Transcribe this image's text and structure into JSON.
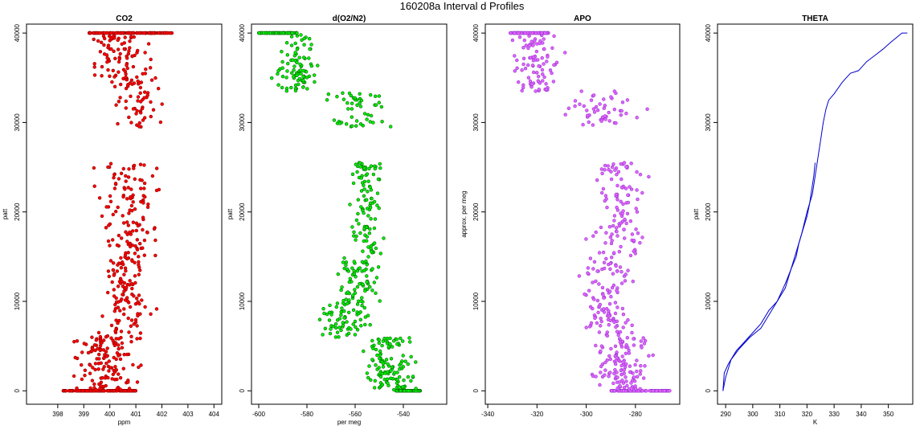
{
  "figure": {
    "title": "160208a   Interval d Profiles"
  },
  "chart_data": [
    {
      "type": "scatter",
      "title": "CO2",
      "xlabel": "ppm",
      "ylabel": "patt",
      "xlim": [
        396.8,
        404.3
      ],
      "ylim": [
        -1500,
        41000
      ],
      "xticks": [
        398,
        399,
        400,
        401,
        402,
        403,
        404
      ],
      "yticks": [
        0,
        10000,
        20000,
        30000,
        40000
      ],
      "colors": {
        "fill": "#ff0000",
        "edge": "#8b0000"
      },
      "segments": [
        {
          "ylo": 0,
          "yhi": 10,
          "center": 399.6,
          "spread": 1.4,
          "count": 150,
          "dist": "uniform"
        },
        {
          "ylo": 100,
          "yhi": 6000,
          "center": 399.9,
          "spread": 0.55,
          "count": 130
        },
        {
          "ylo": 6000,
          "yhi": 15000,
          "center": 400.6,
          "spread": 0.45,
          "count": 110
        },
        {
          "ylo": 15000,
          "yhi": 25500,
          "center": 400.8,
          "spread": 0.55,
          "count": 120
        },
        {
          "ylo": 29500,
          "yhi": 35000,
          "center": 401.0,
          "spread": 0.45,
          "count": 60
        },
        {
          "ylo": 35000,
          "yhi": 39800,
          "center": 400.2,
          "spread": 0.55,
          "count": 80
        },
        {
          "ylo": 40000,
          "yhi": 40010,
          "center": 400.8,
          "spread": 1.6,
          "count": 120,
          "dist": "uniform"
        }
      ]
    },
    {
      "type": "scatter",
      "title": "d(O2/N2)",
      "xlabel": "per meg",
      "ylabel": "patt",
      "xlim": [
        -603,
        -522
      ],
      "ylim": [
        -1500,
        41000
      ],
      "xticks": [
        -600,
        -580,
        -560,
        -540
      ],
      "yticks": [
        0,
        10000,
        20000,
        30000,
        40000
      ],
      "colors": {
        "fill": "#00ee00",
        "edge": "#006400"
      },
      "segments": [
        {
          "ylo": 0,
          "yhi": 10,
          "center": -538,
          "spread": 5,
          "count": 110,
          "dist": "uniform"
        },
        {
          "ylo": 100,
          "yhi": 6000,
          "center": -546,
          "spread": 4.5,
          "count": 120
        },
        {
          "ylo": 6000,
          "yhi": 10000,
          "center": -564,
          "spread": 4.5,
          "count": 70
        },
        {
          "ylo": 10000,
          "yhi": 15000,
          "center": -558,
          "spread": 4.5,
          "count": 70
        },
        {
          "ylo": 15000,
          "yhi": 25500,
          "center": -555,
          "spread": 3.5,
          "count": 100
        },
        {
          "ylo": 29500,
          "yhi": 33500,
          "center": -559,
          "spread": 6,
          "count": 50
        },
        {
          "ylo": 33500,
          "yhi": 39800,
          "center": -584,
          "spread": 4,
          "count": 90
        },
        {
          "ylo": 40000,
          "yhi": 40010,
          "center": -592,
          "spread": 8,
          "count": 90,
          "dist": "uniform"
        }
      ]
    },
    {
      "type": "scatter",
      "title": "APO",
      "xlabel": "",
      "ylabel": "approx. per meg",
      "xlim": [
        -341,
        -262
      ],
      "ylim": [
        -1500,
        41000
      ],
      "xticks": [
        -340,
        -320,
        -300,
        -280
      ],
      "yticks": [
        0,
        10000,
        20000,
        30000,
        40000
      ],
      "colors": {
        "fill": "#e066ff",
        "edge": "#9932cc"
      },
      "segments": [
        {
          "ylo": 0,
          "yhi": 10,
          "center": -278,
          "spread": 12,
          "count": 110,
          "dist": "uniform"
        },
        {
          "ylo": 100,
          "yhi": 6000,
          "center": -285,
          "spread": 5,
          "count": 120
        },
        {
          "ylo": 6000,
          "yhi": 15000,
          "center": -291,
          "spread": 5,
          "count": 110
        },
        {
          "ylo": 15000,
          "yhi": 25500,
          "center": -287,
          "spread": 5,
          "count": 110
        },
        {
          "ylo": 29500,
          "yhi": 33500,
          "center": -295,
          "spread": 7,
          "count": 50
        },
        {
          "ylo": 33500,
          "yhi": 39800,
          "center": -320,
          "spread": 4,
          "count": 90
        },
        {
          "ylo": 40000,
          "yhi": 40010,
          "center": -323,
          "spread": 8,
          "count": 90,
          "dist": "uniform"
        }
      ]
    },
    {
      "type": "line",
      "title": "THETA",
      "xlabel": "K",
      "ylabel": "patt",
      "xlim": [
        287,
        359
      ],
      "ylim": [
        -1500,
        41000
      ],
      "xticks": [
        290,
        300,
        310,
        320,
        330,
        340,
        350
      ],
      "yticks": [
        0,
        10000,
        20000,
        30000,
        40000
      ],
      "colors": {
        "line": "#0000cd"
      },
      "series": [
        {
          "x": [
            289,
            290,
            292,
            295,
            299,
            303,
            306,
            309,
            312,
            314,
            316,
            317,
            318,
            319,
            320,
            321,
            321.5,
            322,
            322.5,
            323
          ],
          "y": [
            0,
            1500,
            3500,
            4700,
            6000,
            7000,
            8500,
            10000,
            11500,
            13500,
            15000,
            16500,
            17500,
            18500,
            19500,
            21000,
            22000,
            23000,
            24000,
            25500
          ]
        },
        {
          "x": [
            289,
            289.5,
            291,
            294,
            297,
            300,
            303,
            306,
            309,
            312,
            314,
            316,
            318,
            320,
            322,
            323,
            324,
            325,
            326,
            327,
            328,
            330,
            333,
            336,
            339,
            342,
            345,
            348,
            351,
            353,
            355,
            357
          ],
          "y": [
            0,
            2000,
            3000,
            4500,
            5500,
            6500,
            7500,
            9000,
            10000,
            12000,
            13500,
            15500,
            17500,
            20000,
            22000,
            24000,
            26000,
            28000,
            30000,
            31500,
            32500,
            33200,
            34500,
            35500,
            35800,
            36800,
            37500,
            38200,
            39000,
            39500,
            40000,
            40000
          ]
        }
      ]
    }
  ]
}
